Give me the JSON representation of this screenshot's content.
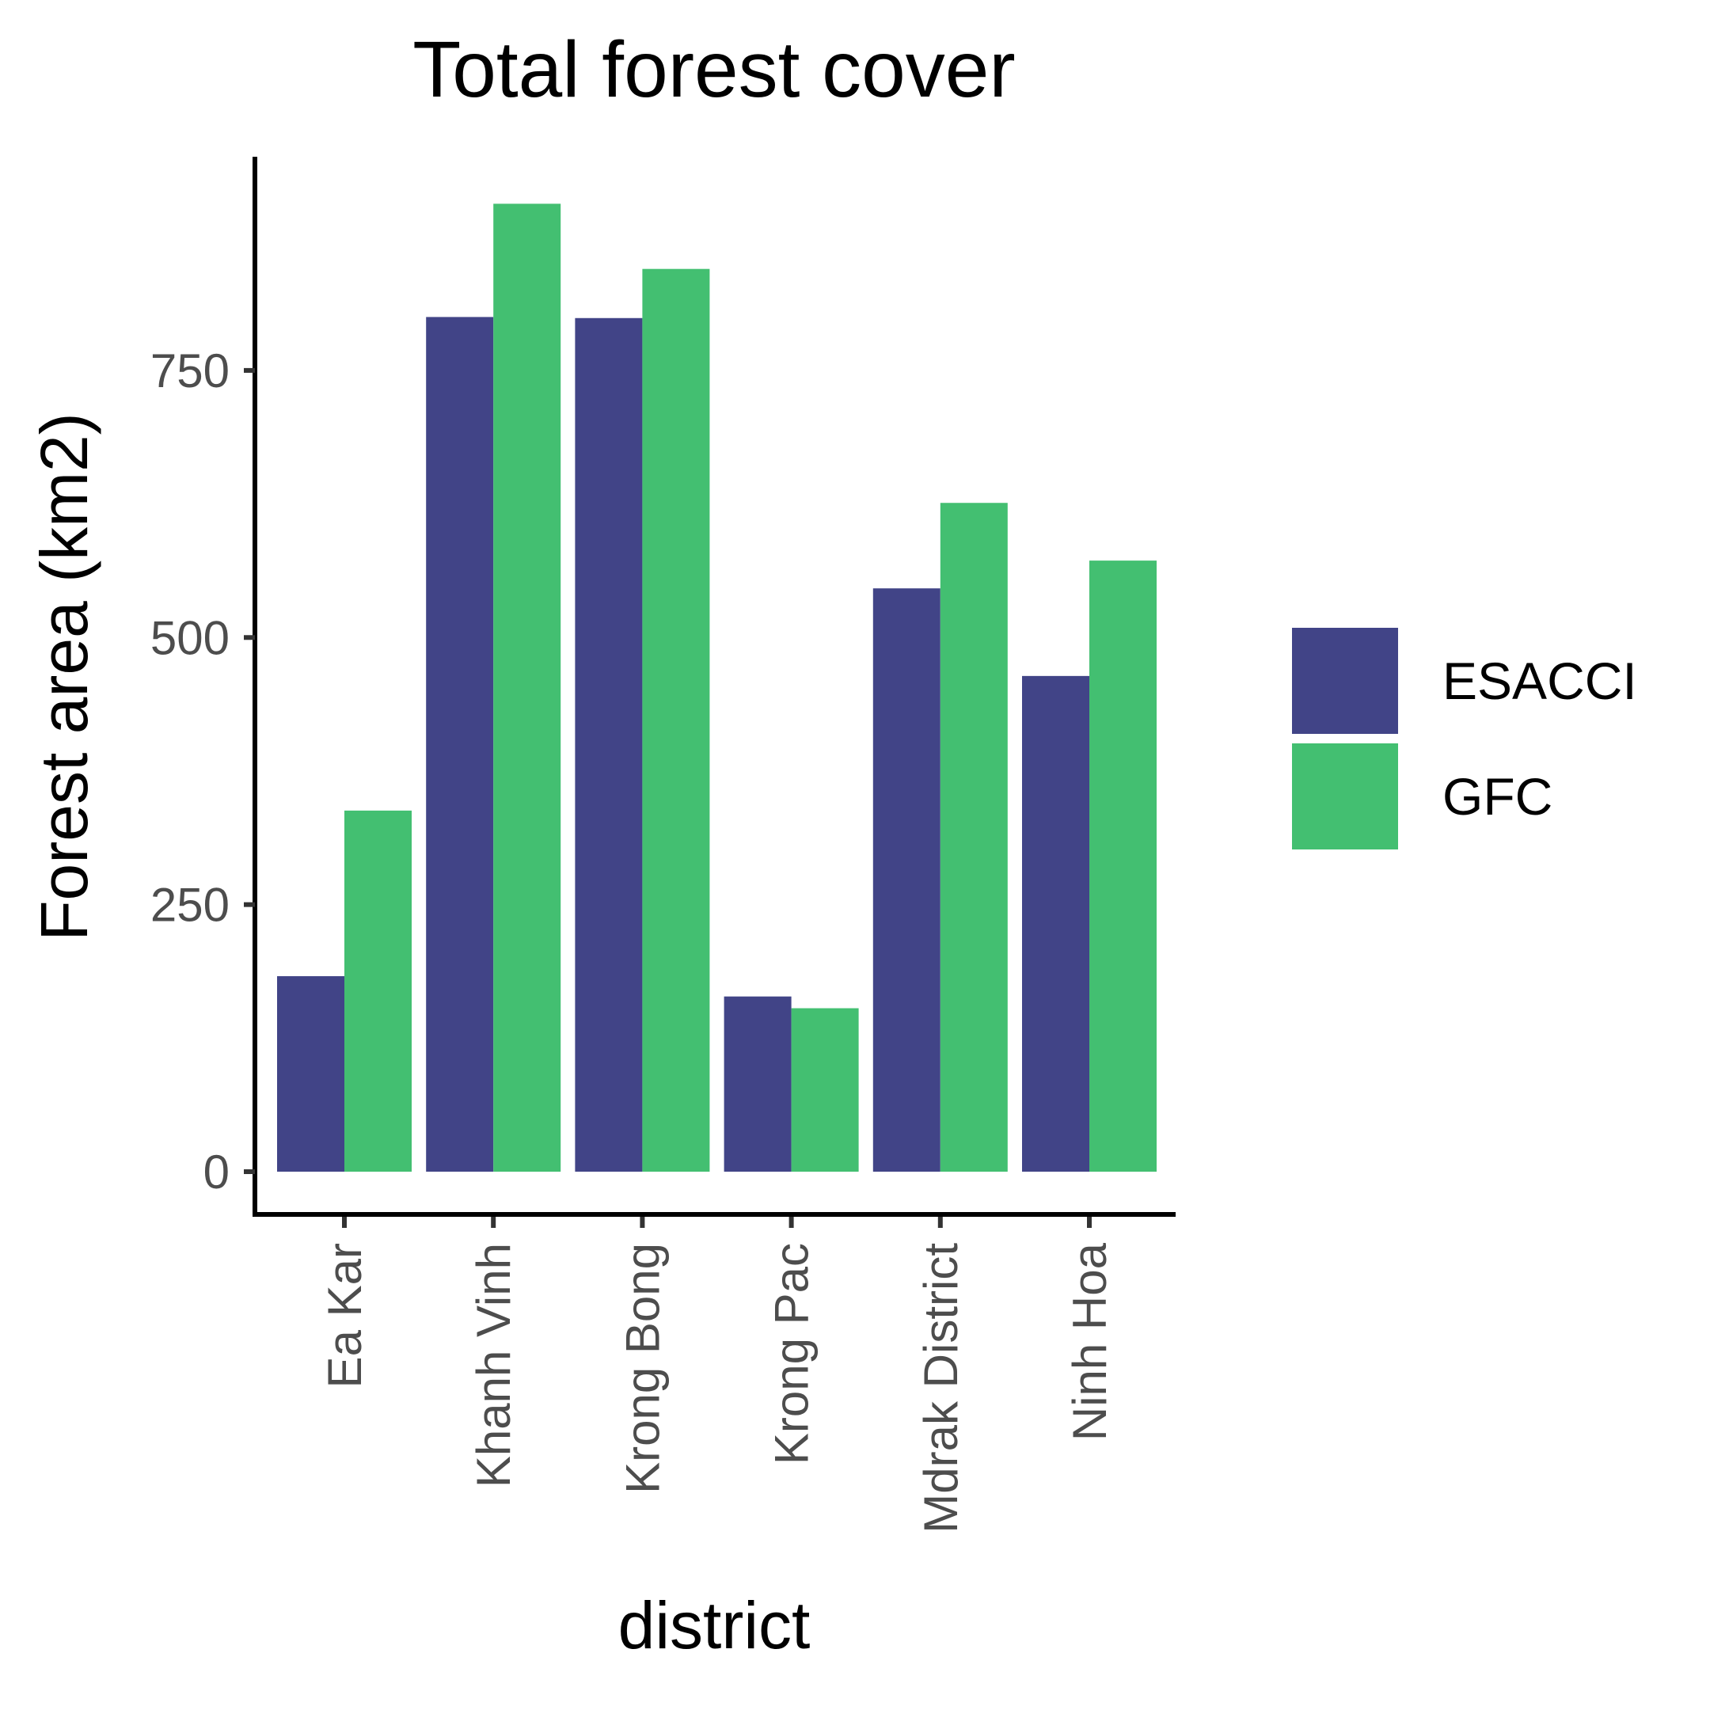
{
  "chart_data": {
    "type": "bar",
    "title": "Total forest cover",
    "xlabel": "district",
    "ylabel": "Forest area (km2)",
    "categories": [
      "Ea Kar",
      "Khanh Vinh",
      "Krong Bong",
      "Krong Pac",
      "Mdrak District",
      "Ninh Hoa"
    ],
    "series": [
      {
        "name": "ESACCI",
        "color": "#414487",
        "values": [
          183,
          800,
          799,
          164,
          546,
          464
        ]
      },
      {
        "name": "GFC",
        "color": "#43bf71",
        "values": [
          338,
          906,
          845,
          153,
          626,
          572
        ]
      }
    ],
    "yticks": [
      0,
      250,
      500,
      750
    ],
    "ylim": [
      -40,
      950
    ],
    "grid": false,
    "legend_position": "right"
  }
}
